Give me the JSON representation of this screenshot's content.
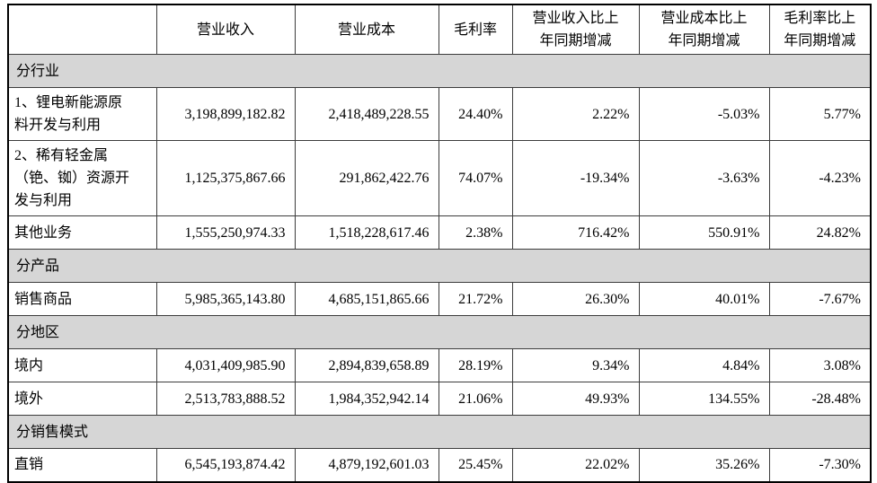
{
  "colors": {
    "section_bg": "#d6d6d6",
    "border": "#000000",
    "text": "#000000"
  },
  "table": {
    "column_headers": [
      "",
      "营业收入",
      "营业成本",
      "毛利率",
      "营业收入比上\n年同期增减",
      "营业成本比上\n年同期增减",
      "毛利率比上\n年同期增减"
    ],
    "rows": [
      {
        "type": "section",
        "label": "分行业"
      },
      {
        "type": "data",
        "label": "1、锂电新能源原\n料开发与利用",
        "values": [
          "3,198,899,182.82",
          "2,418,489,228.55",
          "24.40%",
          "2.22%",
          "-5.03%",
          "5.77%"
        ]
      },
      {
        "type": "data",
        "label": "2、稀有轻金属\n（铯、铷）资源开\n发与利用",
        "values": [
          "1,125,375,867.66",
          "291,862,422.76",
          "74.07%",
          "-19.34%",
          "-3.63%",
          "-4.23%"
        ]
      },
      {
        "type": "data",
        "label": "其他业务",
        "values": [
          "1,555,250,974.33",
          "1,518,228,617.46",
          "2.38%",
          "716.42%",
          "550.91%",
          "24.82%"
        ]
      },
      {
        "type": "section",
        "label": "分产品"
      },
      {
        "type": "data",
        "label": "销售商品",
        "values": [
          "5,985,365,143.80",
          "4,685,151,865.66",
          "21.72%",
          "26.30%",
          "40.01%",
          "-7.67%"
        ]
      },
      {
        "type": "section",
        "label": "分地区"
      },
      {
        "type": "data",
        "label": "境内",
        "values": [
          "4,031,409,985.90",
          "2,894,839,658.89",
          "28.19%",
          "9.34%",
          "4.84%",
          "3.08%"
        ]
      },
      {
        "type": "data",
        "label": "境外",
        "values": [
          "2,513,783,888.52",
          "1,984,352,942.14",
          "21.06%",
          "49.93%",
          "134.55%",
          "-28.48%"
        ]
      },
      {
        "type": "section",
        "label": "分销售模式"
      },
      {
        "type": "data",
        "label": "直销",
        "values": [
          "6,545,193,874.42",
          "4,879,192,601.03",
          "25.45%",
          "22.02%",
          "35.26%",
          "-7.30%"
        ]
      }
    ]
  }
}
